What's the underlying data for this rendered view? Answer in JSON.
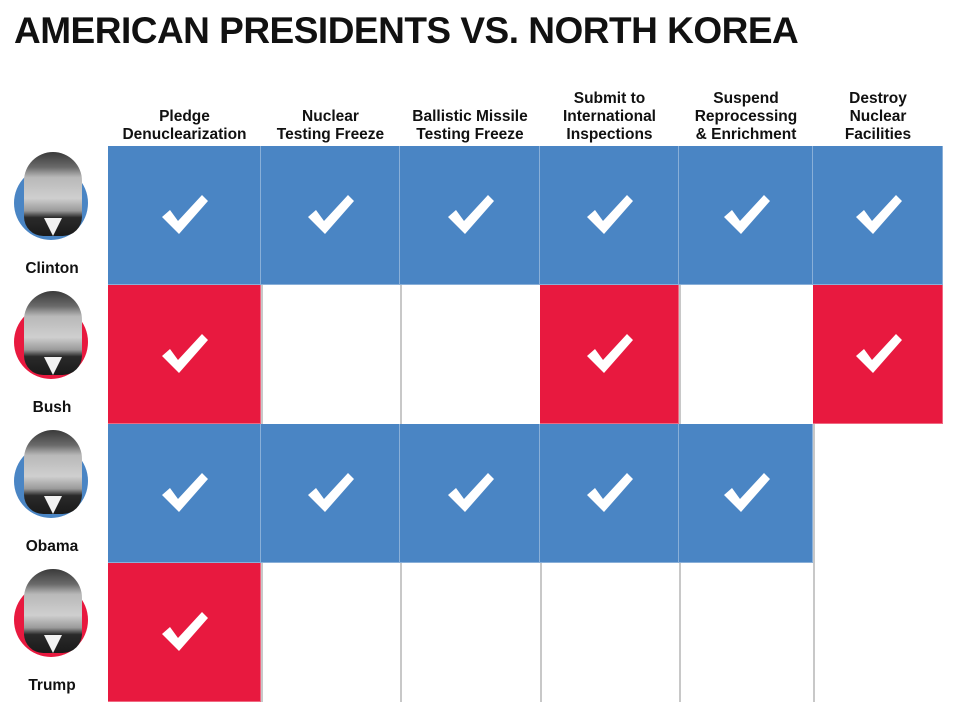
{
  "title": "AMERICAN PRESIDENTS VS. NORTH KOREA",
  "colors": {
    "blue": "#4a85c4",
    "red": "#e8193f",
    "check": "#ffffff",
    "gridline": "#c8c8c8"
  },
  "chart_data": {
    "type": "table",
    "columns": [
      "Pledge\nDenuclearization",
      "Nuclear\nTesting Freeze",
      "Ballistic Missile\nTesting Freeze",
      "Submit to\nInternational\nInspections",
      "Suspend\nReprocessing\n& Enrichment",
      "Destroy\nNuclear\nFacilities"
    ],
    "rows": [
      {
        "name": "Clinton",
        "color": "blue",
        "icon": "clinton-portrait-icon",
        "values": [
          true,
          true,
          true,
          true,
          true,
          true
        ]
      },
      {
        "name": "Bush",
        "color": "red",
        "icon": "bush-portrait-icon",
        "values": [
          true,
          false,
          false,
          true,
          false,
          true
        ]
      },
      {
        "name": "Obama",
        "color": "blue",
        "icon": "obama-portrait-icon",
        "values": [
          true,
          true,
          true,
          true,
          true,
          false
        ]
      },
      {
        "name": "Trump",
        "color": "red",
        "icon": "trump-portrait-icon",
        "values": [
          true,
          false,
          false,
          false,
          false,
          false
        ]
      }
    ]
  }
}
